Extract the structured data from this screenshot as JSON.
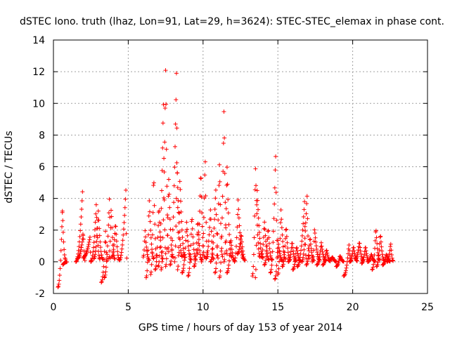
{
  "chart_data": {
    "type": "scatter",
    "title": "dSTEC Iono. truth (lhaz, Lon=91, Lat=29, h=3624): STEC-STEC_elemax in phase cont.",
    "xlabel": "GPS time / hours of day 153 of year 2014",
    "ylabel": "dSTEC  / TECUs",
    "xlim": [
      0,
      25
    ],
    "ylim": [
      -2,
      14
    ],
    "x_ticks": [
      "0",
      "5",
      "10",
      "15",
      "20",
      "25"
    ],
    "y_ticks": [
      "-2",
      "0",
      "2",
      "4",
      "6",
      "8",
      "10",
      "12",
      "14"
    ],
    "grid": true,
    "marker": "plus",
    "color": "#ff0000",
    "arcs": [
      {
        "t0": 0.3,
        "t1": 0.8,
        "a": -1.6,
        "b": 3.3,
        "peak": 0.6
      },
      {
        "t0": 0.6,
        "t1": 0.9,
        "a": 3.2,
        "b": -0.2,
        "peak": 0.0
      },
      {
        "t0": 1.5,
        "t1": 2.0,
        "a": 0.0,
        "b": 4.6,
        "peak": 0.9
      },
      {
        "t0": 1.6,
        "t1": 2.1,
        "a": 0.2,
        "b": 1.8,
        "peak": 0.8
      },
      {
        "t0": 2.0,
        "t1": 2.5,
        "a": 0.3,
        "b": 1.6,
        "peak": 0.9
      },
      {
        "t0": 2.5,
        "t1": 3.1,
        "a": 0.0,
        "b": 3.6,
        "peak": 0.6
      },
      {
        "t0": 2.7,
        "t1": 3.3,
        "a": 0.2,
        "b": 3.2,
        "peak": 0.5
      },
      {
        "t0": 3.2,
        "t1": 3.6,
        "a": -1.3,
        "b": 2.0,
        "peak": 0.7
      },
      {
        "t0": 3.4,
        "t1": 3.8,
        "a": -1.0,
        "b": 4.6,
        "peak": 0.9
      },
      {
        "t0": 3.7,
        "t1": 4.1,
        "a": 0.2,
        "b": 3.5,
        "peak": 0.4
      },
      {
        "t0": 3.9,
        "t1": 4.4,
        "a": 0.3,
        "b": 2.5,
        "peak": 0.5
      },
      {
        "t0": 4.4,
        "t1": 4.9,
        "a": 0.1,
        "b": 4.7,
        "peak": 0.9
      },
      {
        "t0": 6.0,
        "t1": 6.4,
        "a": 0.3,
        "b": 2.0,
        "peak": 0.3
      },
      {
        "t0": 6.2,
        "t1": 6.7,
        "a": -1.0,
        "b": 4.0,
        "peak": 0.4
      },
      {
        "t0": 6.5,
        "t1": 6.9,
        "a": -0.8,
        "b": 5.8,
        "peak": 0.5
      },
      {
        "t0": 6.8,
        "t1": 7.3,
        "a": -0.5,
        "b": 3.6,
        "peak": 0.5
      },
      {
        "t0": 7.0,
        "t1": 7.5,
        "a": -0.3,
        "b": 10.3,
        "peak": 0.7
      },
      {
        "t0": 7.2,
        "t1": 7.7,
        "a": -0.5,
        "b": 12.6,
        "peak": 0.6
      },
      {
        "t0": 7.5,
        "t1": 8.0,
        "a": -0.3,
        "b": 5.4,
        "peak": 0.4
      },
      {
        "t0": 7.8,
        "t1": 8.4,
        "a": -0.2,
        "b": 11.9,
        "peak": 0.7
      },
      {
        "t0": 8.1,
        "t1": 8.6,
        "a": 0.0,
        "b": 6.5,
        "peak": 0.3
      },
      {
        "t0": 8.3,
        "t1": 8.8,
        "a": -0.5,
        "b": 5.3,
        "peak": 0.3
      },
      {
        "t0": 8.6,
        "t1": 9.2,
        "a": -0.7,
        "b": 2.5,
        "peak": 0.5
      },
      {
        "t0": 9.0,
        "t1": 9.5,
        "a": -0.9,
        "b": 3.0,
        "peak": 0.5
      },
      {
        "t0": 9.4,
        "t1": 9.9,
        "a": -0.3,
        "b": 2.7,
        "peak": 0.5
      },
      {
        "t0": 9.6,
        "t1": 10.1,
        "a": 0.5,
        "b": 5.9,
        "peak": 0.5
      },
      {
        "t0": 9.9,
        "t1": 10.3,
        "a": 0.0,
        "b": 6.8,
        "peak": 0.6
      },
      {
        "t0": 10.2,
        "t1": 10.7,
        "a": 0.2,
        "b": 3.4,
        "peak": 0.6
      },
      {
        "t0": 10.5,
        "t1": 11.0,
        "a": 0.0,
        "b": 4.7,
        "peak": 0.7
      },
      {
        "t0": 10.8,
        "t1": 11.3,
        "a": -0.7,
        "b": 6.4,
        "peak": 0.6
      },
      {
        "t0": 11.1,
        "t1": 11.6,
        "a": -1.0,
        "b": 9.9,
        "peak": 0.6
      },
      {
        "t0": 11.4,
        "t1": 11.9,
        "a": 0.0,
        "b": 6.2,
        "peak": 0.4
      },
      {
        "t0": 11.6,
        "t1": 12.1,
        "a": -0.7,
        "b": 1.5,
        "peak": 0.5
      },
      {
        "t0": 12.1,
        "t1": 12.7,
        "a": 0.0,
        "b": 3.9,
        "peak": 0.4
      },
      {
        "t0": 12.3,
        "t1": 12.8,
        "a": 0.5,
        "b": 1.8,
        "peak": 0.5
      },
      {
        "t0": 13.3,
        "t1": 13.8,
        "a": -0.9,
        "b": 6.1,
        "peak": 0.4
      },
      {
        "t0": 13.5,
        "t1": 14.0,
        "a": -1.0,
        "b": 4.9,
        "peak": 0.2
      },
      {
        "t0": 13.9,
        "t1": 14.4,
        "a": 0.3,
        "b": 2.6,
        "peak": 0.4
      },
      {
        "t0": 14.1,
        "t1": 14.6,
        "a": -0.2,
        "b": 2.2,
        "peak": 0.5
      },
      {
        "t0": 14.5,
        "t1": 15.0,
        "a": -0.7,
        "b": 6.9,
        "peak": 0.7
      },
      {
        "t0": 14.8,
        "t1": 15.3,
        "a": -1.1,
        "b": 1.4,
        "peak": 0.4
      },
      {
        "t0": 15.0,
        "t1": 15.5,
        "a": -0.8,
        "b": 3.4,
        "peak": 0.4
      },
      {
        "t0": 15.3,
        "t1": 15.8,
        "a": -0.3,
        "b": 2.3,
        "peak": 0.5
      },
      {
        "t0": 15.7,
        "t1": 16.2,
        "a": 0.0,
        "b": 1.3,
        "peak": 0.5
      },
      {
        "t0": 16.0,
        "t1": 16.5,
        "a": -0.5,
        "b": 1.0,
        "peak": 0.5
      },
      {
        "t0": 16.3,
        "t1": 16.9,
        "a": -0.3,
        "b": 3.8,
        "peak": 0.8
      },
      {
        "t0": 16.6,
        "t1": 17.1,
        "a": 0.0,
        "b": 4.3,
        "peak": 0.7
      },
      {
        "t0": 16.9,
        "t1": 17.4,
        "a": -0.2,
        "b": 1.6,
        "peak": 0.5
      },
      {
        "t0": 17.3,
        "t1": 17.8,
        "a": 0.0,
        "b": 2.1,
        "peak": 0.3
      },
      {
        "t0": 17.6,
        "t1": 18.2,
        "a": -0.2,
        "b": 1.2,
        "peak": 0.5
      },
      {
        "t0": 18.0,
        "t1": 18.5,
        "a": -0.2,
        "b": 0.8,
        "peak": 0.5
      },
      {
        "t0": 18.4,
        "t1": 18.9,
        "a": 0.1,
        "b": 0.3,
        "peak": 0.5
      },
      {
        "t0": 18.9,
        "t1": 19.4,
        "a": -0.3,
        "b": 0.4,
        "peak": 0.5
      },
      {
        "t0": 19.4,
        "t1": 19.9,
        "a": -0.9,
        "b": 1.1,
        "peak": 0.7
      },
      {
        "t0": 19.8,
        "t1": 20.3,
        "a": 0.0,
        "b": 1.0,
        "peak": 0.5
      },
      {
        "t0": 20.2,
        "t1": 20.7,
        "a": 0.2,
        "b": 1.3,
        "peak": 0.5
      },
      {
        "t0": 20.6,
        "t1": 21.1,
        "a": -0.1,
        "b": 1.0,
        "peak": 0.5
      },
      {
        "t0": 21.0,
        "t1": 21.5,
        "a": 0.0,
        "b": 0.5,
        "peak": 0.5
      },
      {
        "t0": 21.3,
        "t1": 21.8,
        "a": -0.5,
        "b": 2.2,
        "peak": 0.5
      },
      {
        "t0": 21.6,
        "t1": 22.1,
        "a": -0.3,
        "b": 1.8,
        "peak": 0.5
      },
      {
        "t0": 22.0,
        "t1": 22.5,
        "a": -0.2,
        "b": 0.5,
        "peak": 0.5
      },
      {
        "t0": 22.3,
        "t1": 22.7,
        "a": 0.0,
        "b": 1.2,
        "peak": 0.6
      }
    ]
  }
}
